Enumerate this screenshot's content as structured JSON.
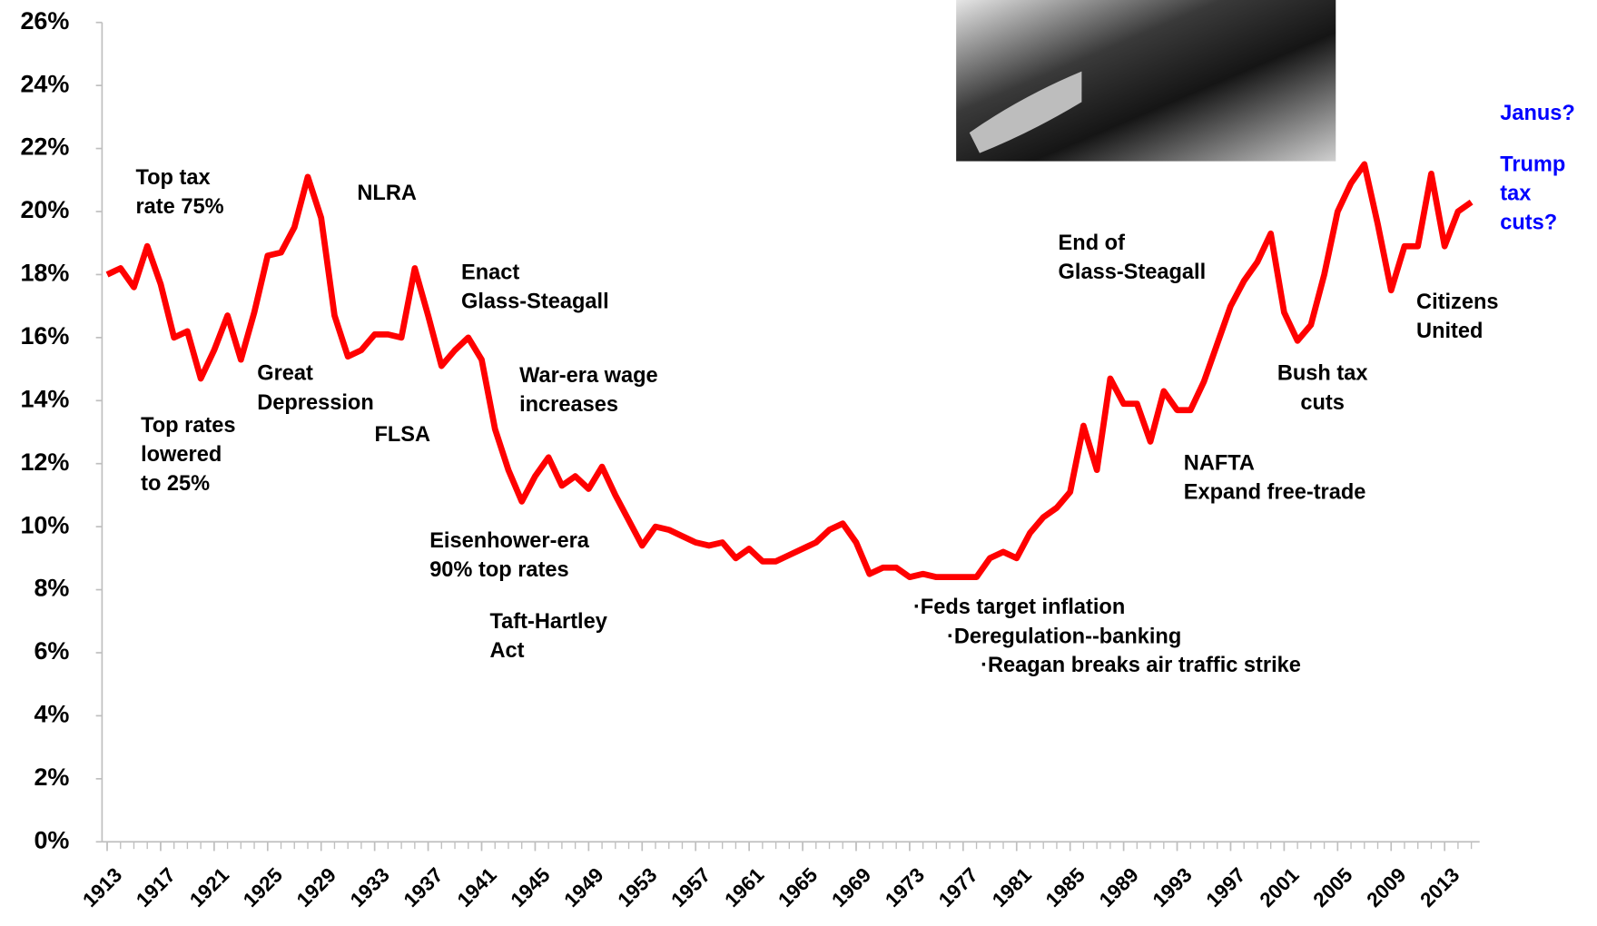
{
  "chart_data": {
    "type": "line",
    "x": [
      1913,
      1914,
      1915,
      1916,
      1917,
      1918,
      1919,
      1920,
      1921,
      1922,
      1923,
      1924,
      1925,
      1926,
      1927,
      1928,
      1929,
      1930,
      1931,
      1932,
      1933,
      1934,
      1935,
      1936,
      1937,
      1938,
      1939,
      1940,
      1941,
      1942,
      1943,
      1944,
      1945,
      1946,
      1947,
      1948,
      1949,
      1950,
      1951,
      1952,
      1953,
      1954,
      1955,
      1956,
      1957,
      1958,
      1959,
      1960,
      1961,
      1962,
      1963,
      1964,
      1965,
      1966,
      1967,
      1968,
      1969,
      1970,
      1971,
      1972,
      1973,
      1974,
      1975,
      1976,
      1977,
      1978,
      1979,
      1980,
      1981,
      1982,
      1983,
      1984,
      1985,
      1986,
      1987,
      1988,
      1989,
      1990,
      1991,
      1992,
      1993,
      1994,
      1995,
      1996,
      1997,
      1998,
      1999,
      2000,
      2001,
      2002,
      2003,
      2004,
      2005,
      2006,
      2007,
      2008,
      2009,
      2010,
      2011,
      2012,
      2013,
      2014,
      2015
    ],
    "series": [
      {
        "color": "#ff0000",
        "values": [
          18.0,
          18.2,
          17.6,
          18.9,
          17.7,
          16.0,
          16.2,
          14.7,
          15.6,
          16.7,
          15.3,
          16.8,
          18.6,
          18.7,
          19.5,
          21.1,
          19.8,
          16.7,
          15.4,
          15.6,
          16.1,
          16.1,
          16.0,
          18.2,
          16.7,
          15.1,
          15.6,
          16.0,
          15.3,
          13.1,
          11.8,
          10.8,
          11.6,
          12.2,
          11.3,
          11.6,
          11.2,
          11.9,
          11.0,
          10.2,
          9.4,
          10.0,
          9.9,
          9.7,
          9.5,
          9.4,
          9.5,
          9.0,
          9.3,
          8.9,
          8.9,
          9.1,
          9.3,
          9.5,
          9.9,
          10.1,
          9.5,
          8.5,
          8.7,
          8.7,
          8.4,
          8.5,
          8.4,
          8.4,
          8.4,
          8.4,
          9.0,
          9.2,
          9.0,
          9.8,
          10.3,
          10.6,
          11.1,
          13.2,
          11.8,
          14.7,
          13.9,
          13.9,
          12.7,
          14.3,
          13.7,
          13.7,
          14.6,
          15.8,
          17.0,
          17.8,
          18.4,
          19.3,
          16.8,
          15.9,
          16.4,
          18.0,
          20.0,
          20.9,
          21.5,
          19.6,
          17.5,
          18.9,
          18.9,
          21.2,
          18.9,
          20.0,
          20.3
        ]
      }
    ],
    "xlim": [
      1913,
      2016
    ],
    "xticks": [
      1913,
      1917,
      1921,
      1925,
      1929,
      1933,
      1937,
      1941,
      1945,
      1949,
      1953,
      1957,
      1961,
      1965,
      1969,
      1973,
      1977,
      1981,
      1985,
      1989,
      1993,
      1997,
      2001,
      2005,
      2009,
      2013
    ],
    "ylim": [
      0,
      26
    ],
    "yticks": [
      {
        "value": 0,
        "label": "0%"
      },
      {
        "value": 2,
        "label": "2%"
      },
      {
        "value": 4,
        "label": "4%"
      },
      {
        "value": 6,
        "label": "6%"
      },
      {
        "value": 8,
        "label": "8%"
      },
      {
        "value": 10,
        "label": "10%"
      },
      {
        "value": 12,
        "label": "12%"
      },
      {
        "value": 14,
        "label": "14%"
      },
      {
        "value": 16,
        "label": "16%"
      },
      {
        "value": 18,
        "label": "18%"
      },
      {
        "value": 20,
        "label": "20%"
      },
      {
        "value": 22,
        "label": "22%"
      },
      {
        "value": 24,
        "label": "24%"
      },
      {
        "value": 26,
        "label": "26%"
      }
    ],
    "annotations": [
      {
        "lines": [
          "Top tax",
          "rate 75%"
        ],
        "color": "#000000"
      },
      {
        "lines": [
          "Top rates",
          "lowered",
          "to 25%"
        ],
        "color": "#000000"
      },
      {
        "lines": [
          "Great",
          "Depression"
        ],
        "color": "#000000"
      },
      {
        "lines": [
          "NLRA"
        ],
        "color": "#000000"
      },
      {
        "lines": [
          "FLSA"
        ],
        "color": "#000000"
      },
      {
        "lines": [
          "Enact",
          "Glass-Steagall"
        ],
        "color": "#000000"
      },
      {
        "lines": [
          "War-era wage",
          "increases"
        ],
        "color": "#000000"
      },
      {
        "lines": [
          "Eisenhower-era",
          "90% top rates"
        ],
        "color": "#000000"
      },
      {
        "lines": [
          "Taft-Hartley",
          "Act"
        ],
        "color": "#000000"
      },
      {
        "lines": [
          "·Feds target inflation"
        ],
        "color": "#000000"
      },
      {
        "lines": [
          "·Deregulation--banking"
        ],
        "color": "#000000"
      },
      {
        "lines": [
          "·Reagan breaks air traffic strike"
        ],
        "color": "#000000"
      },
      {
        "lines": [
          "End of",
          "Glass-Steagall"
        ],
        "color": "#000000"
      },
      {
        "lines": [
          "NAFTA",
          "Expand free-trade"
        ],
        "color": "#000000"
      },
      {
        "lines": [
          "Bush tax",
          "cuts"
        ],
        "color": "#000000"
      },
      {
        "lines": [
          "Citizens",
          "United"
        ],
        "color": "#000000"
      },
      {
        "lines": [
          "Janus?"
        ],
        "color": "#0000ff"
      },
      {
        "lines": [
          "Trump",
          "tax",
          "cuts?"
        ],
        "color": "#0000ff"
      }
    ]
  }
}
